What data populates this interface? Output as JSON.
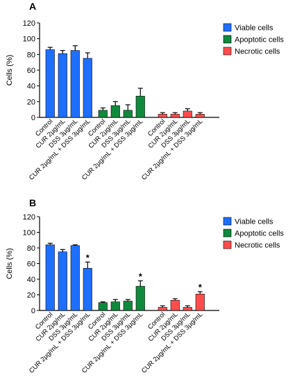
{
  "chart_data": [
    {
      "panel": "A",
      "type": "bar",
      "ylabel": "Cells (%)",
      "ylim": [
        0,
        120
      ],
      "yticks": [
        0,
        20,
        40,
        60,
        80,
        100,
        120
      ],
      "categories": [
        "Control",
        "CUR 2µg/mL",
        "DSS 3µg/mL",
        "CUR 2µg/mL + DSS 3µg/mL"
      ],
      "legend_position": "top-right",
      "series": [
        {
          "name": "Viable cells",
          "color": "#1f6fff",
          "values": [
            86,
            81,
            85,
            75
          ],
          "errors": [
            3,
            4,
            6,
            7
          ],
          "significant": [
            false,
            false,
            false,
            false
          ]
        },
        {
          "name": "Apoptotic cells",
          "color": "#0f8a3c",
          "values": [
            9,
            15,
            9,
            27
          ],
          "errors": [
            3,
            5,
            7,
            10
          ],
          "significant": [
            false,
            false,
            false,
            false
          ]
        },
        {
          "name": "Necrotic cells",
          "color": "#ff4d4d",
          "values": [
            4,
            4,
            8,
            4
          ],
          "errors": [
            2,
            2,
            3,
            2
          ],
          "significant": [
            false,
            false,
            false,
            false
          ]
        }
      ]
    },
    {
      "panel": "B",
      "type": "bar",
      "ylabel": "Cells (%)",
      "ylim": [
        0,
        120
      ],
      "yticks": [
        0,
        20,
        40,
        60,
        80,
        100,
        120
      ],
      "categories": [
        "Control",
        "CUR 2µg/mL",
        "DSS 3µg/mL",
        "CUR 2µg/mL + DSS 3µg/mL"
      ],
      "legend_position": "top-right",
      "significance_marker": "*",
      "series": [
        {
          "name": "Viable cells",
          "color": "#1f6fff",
          "values": [
            84,
            75,
            83,
            54
          ],
          "errors": [
            2,
            3,
            1,
            8
          ],
          "significant": [
            false,
            false,
            false,
            true
          ]
        },
        {
          "name": "Apoptotic cells",
          "color": "#0f8a3c",
          "values": [
            10,
            11,
            12,
            31
          ],
          "errors": [
            1,
            3,
            2,
            7
          ],
          "significant": [
            false,
            false,
            false,
            true
          ]
        },
        {
          "name": "Necrotic cells",
          "color": "#ff4d4d",
          "values": [
            4,
            13,
            4,
            21
          ],
          "errors": [
            2,
            2,
            2,
            3
          ],
          "significant": [
            false,
            false,
            false,
            true
          ]
        }
      ]
    }
  ]
}
